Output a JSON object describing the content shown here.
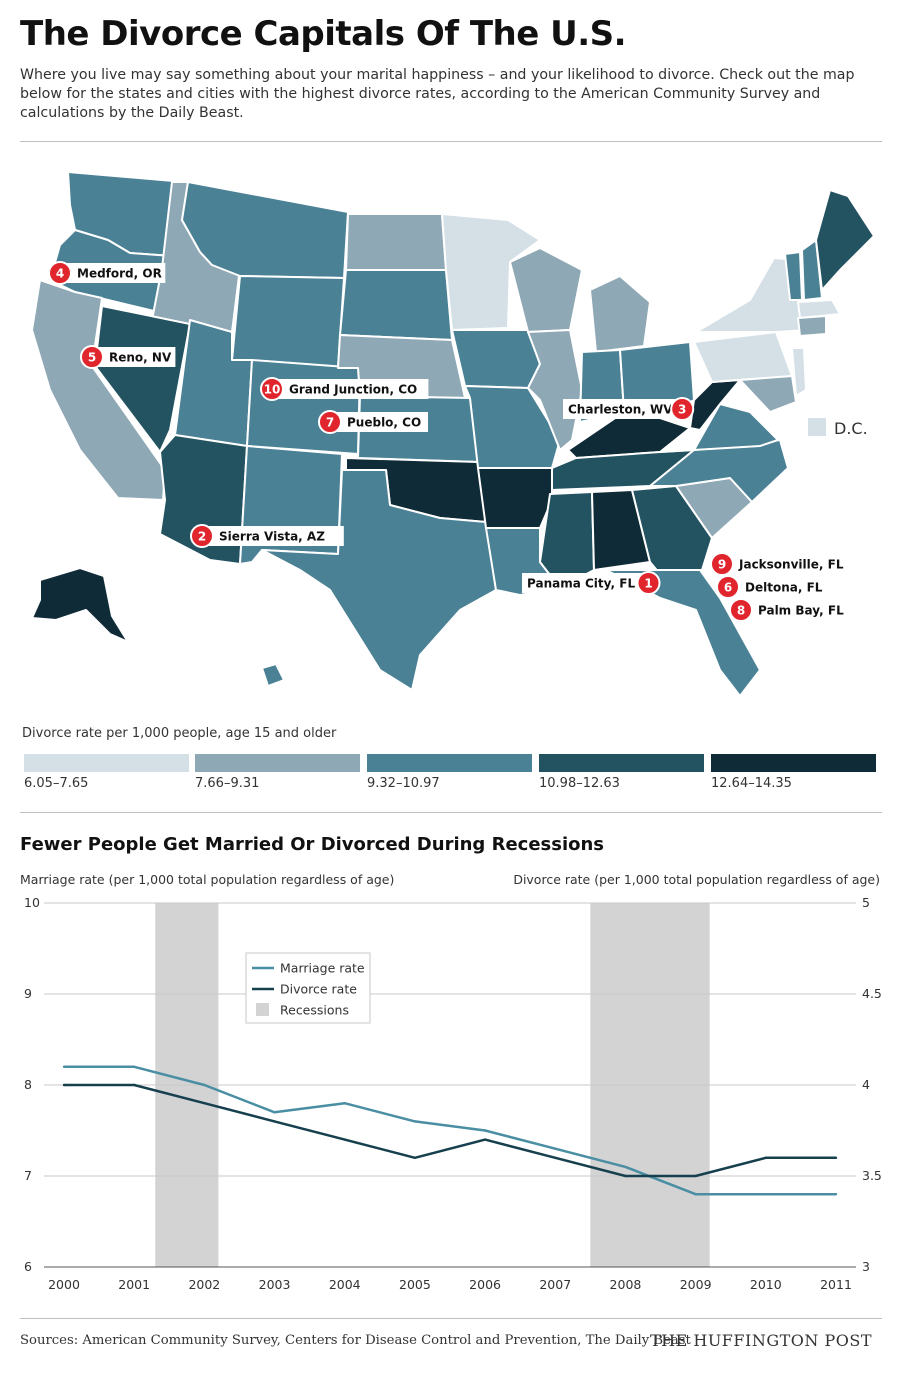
{
  "title": "The Divorce Capitals Of The U.S.",
  "subtitle": "Where you live may say something about your marital happiness – and your likelihood to divorce. Check out the map below for the states and cities with the highest divorce rates, according to the American Community Survey and calculations by the Daily Beast.",
  "map": {
    "dc_label": "D.C.",
    "cities": [
      {
        "rank": "1",
        "name": "Panama City, FL",
        "badge_side": "right"
      },
      {
        "rank": "2",
        "name": "Sierra Vista, AZ",
        "badge_side": "left"
      },
      {
        "rank": "3",
        "name": "Charleston, WV",
        "badge_side": "right"
      },
      {
        "rank": "4",
        "name": "Medford, OR",
        "badge_side": "left"
      },
      {
        "rank": "5",
        "name": "Reno, NV",
        "badge_side": "left"
      },
      {
        "rank": "6",
        "name": "Deltona, FL",
        "badge_side": "left"
      },
      {
        "rank": "7",
        "name": "Pueblo, CO",
        "badge_side": "left"
      },
      {
        "rank": "8",
        "name": "Palm Bay, FL",
        "badge_side": "left"
      },
      {
        "rank": "9",
        "name": "Jacksonville, FL",
        "badge_side": "left"
      },
      {
        "rank": "10",
        "name": "Grand Junction, CO",
        "badge_side": "left"
      }
    ],
    "colors": {
      "land": "#4a8195",
      "state_border": "#ffffff",
      "badge": "#e0262c"
    },
    "legend_title": "Divorce rate per 1,000 people, age 15 and older",
    "legend_bins": [
      {
        "label": "6.05–7.65",
        "color": "#d4dfe6"
      },
      {
        "label": "7.66–9.31",
        "color": "#8fa8b5"
      },
      {
        "label": "9.32–10.97",
        "color": "#4a8195"
      },
      {
        "label": "10.98–12.63",
        "color": "#235261"
      },
      {
        "label": "12.64–14.35",
        "color": "#0f2b37"
      }
    ]
  },
  "chart_title": "Fewer People Get Married Or Divorced During Recessions",
  "chart_data": {
    "type": "line",
    "left_axis_label": "Marriage rate (per 1,000 total population regardless of age)",
    "right_axis_label": "Divorce rate (per 1,000 total population regardless of age)",
    "x": [
      2000,
      2001,
      2002,
      2003,
      2004,
      2005,
      2006,
      2007,
      2008,
      2009,
      2010,
      2011
    ],
    "left_ylim": [
      6,
      10
    ],
    "left_ticks": [
      6,
      7,
      8,
      9,
      10
    ],
    "right_ylim": [
      3,
      5
    ],
    "right_ticks": [
      "3",
      "3.5",
      "4",
      "4.5",
      "5"
    ],
    "grid": true,
    "legend_position": "upper-left-center",
    "series": [
      {
        "name": "Marriage rate",
        "axis": "left",
        "color": "#4a8ea3",
        "values": [
          8.2,
          8.2,
          8.0,
          7.7,
          7.8,
          7.6,
          7.5,
          7.3,
          7.1,
          6.8,
          6.8,
          6.8
        ]
      },
      {
        "name": "Divorce rate",
        "axis": "right",
        "color": "#17404e",
        "values": [
          4.0,
          4.0,
          3.9,
          3.8,
          3.7,
          3.6,
          3.7,
          3.6,
          3.5,
          3.5,
          3.6,
          3.6
        ]
      }
    ],
    "recessions": {
      "name": "Recessions",
      "color": "#d3d3d4",
      "spans": [
        [
          2001.3,
          2002.2
        ],
        [
          2007.5,
          2009.2
        ]
      ]
    }
  },
  "sources": "Sources: American Community Survey, Centers for Disease Control and Prevention, The Daily Beast",
  "brand": "THE HUFFINGTON POST"
}
